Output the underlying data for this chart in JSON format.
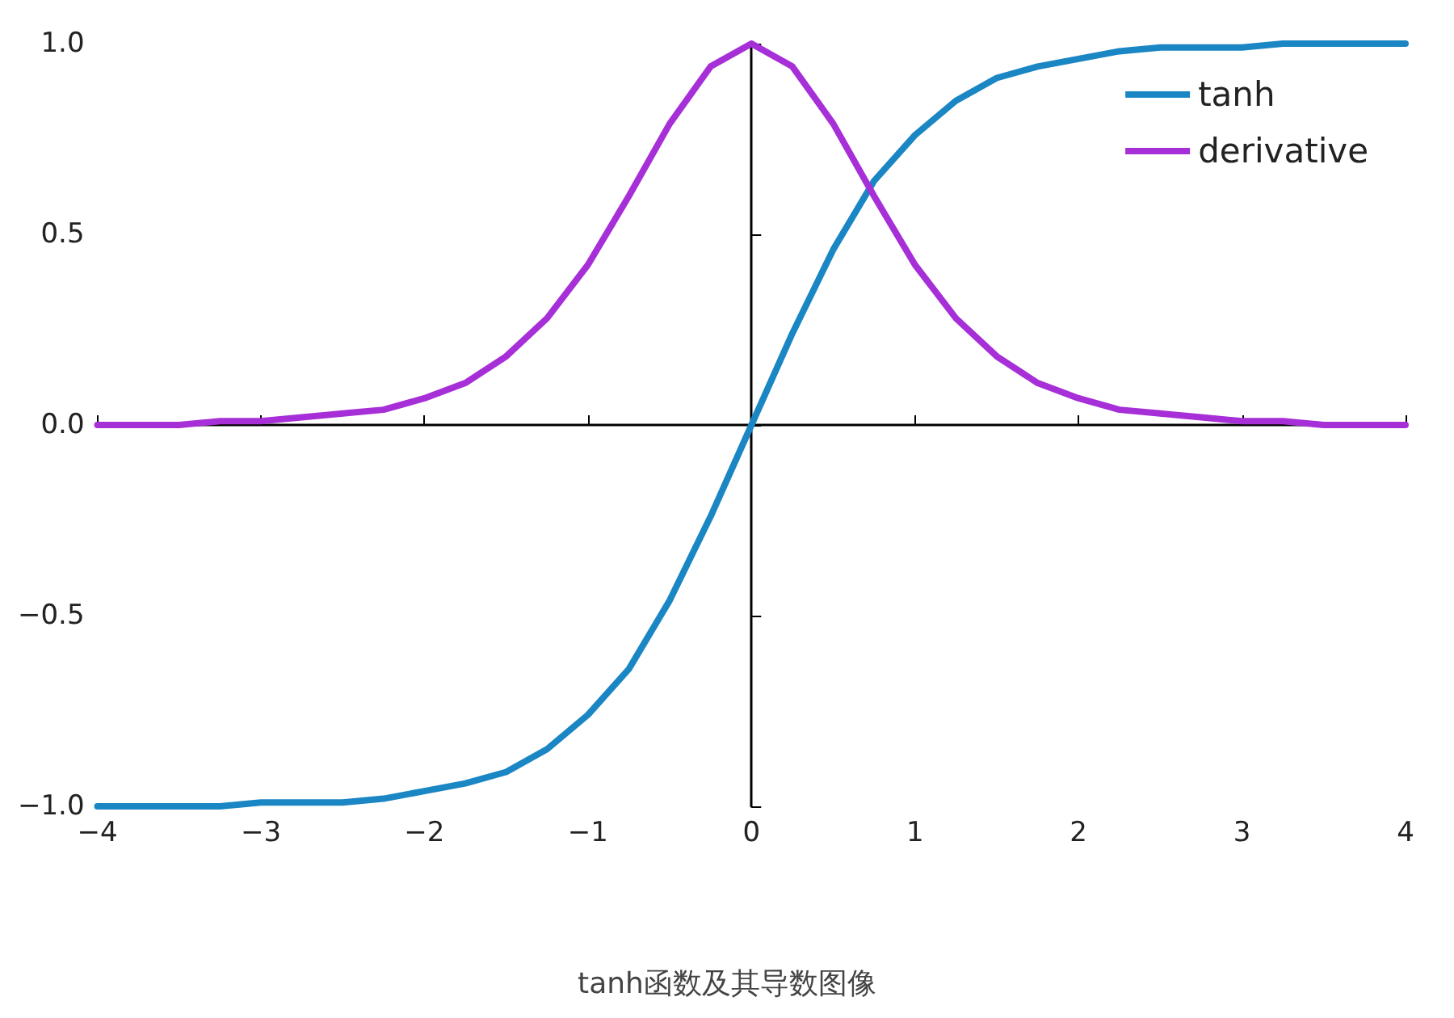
{
  "chart_data": {
    "type": "line",
    "x": [
      -4,
      -3.75,
      -3.5,
      -3.25,
      -3,
      -2.75,
      -2.5,
      -2.25,
      -2,
      -1.75,
      -1.5,
      -1.25,
      -1,
      -0.75,
      -0.5,
      -0.25,
      0,
      0.25,
      0.5,
      0.75,
      1,
      1.25,
      1.5,
      1.75,
      2,
      2.25,
      2.5,
      2.75,
      3,
      3.25,
      3.5,
      3.75,
      4
    ],
    "series": [
      {
        "name": "tanh",
        "color": "#1a86c4",
        "values": [
          -1,
          -1,
          -1,
          -1,
          -0.99,
          -0.99,
          -0.99,
          -0.98,
          -0.96,
          -0.94,
          -0.91,
          -0.85,
          -0.76,
          -0.64,
          -0.46,
          -0.24,
          0,
          0.24,
          0.46,
          0.64,
          0.76,
          0.85,
          0.91,
          0.94,
          0.96,
          0.98,
          0.99,
          0.99,
          0.99,
          1,
          1,
          1,
          1
        ]
      },
      {
        "name": "derivative",
        "color": "#a62fd8",
        "values": [
          0,
          0,
          0,
          0.01,
          0.01,
          0.02,
          0.03,
          0.04,
          0.07,
          0.11,
          0.18,
          0.28,
          0.42,
          0.6,
          0.79,
          0.94,
          1,
          0.94,
          0.79,
          0.6,
          0.42,
          0.28,
          0.18,
          0.11,
          0.07,
          0.04,
          0.03,
          0.02,
          0.01,
          0.01,
          0,
          0,
          0
        ]
      }
    ],
    "xlim": [
      -4,
      4
    ],
    "xticks": [
      {
        "value": -4,
        "label": "−4"
      },
      {
        "value": -3,
        "label": "−3"
      },
      {
        "value": -2,
        "label": "−2"
      },
      {
        "value": -1,
        "label": "−1"
      },
      0,
      1,
      2,
      3,
      4
    ],
    "ylim": [
      -1,
      1
    ],
    "yticks": [
      {
        "value": -1,
        "label": "−1.0"
      },
      {
        "value": -0.5,
        "label": "−0.5"
      },
      {
        "value": 0,
        "label": "0.0"
      },
      {
        "value": 0.5,
        "label": "0.5"
      },
      {
        "value": 1,
        "label": "1.0"
      }
    ],
    "legend": "top right",
    "marker": "none",
    "line_style": "solid",
    "annotations": [
      "tanh函数及其导数图像"
    ]
  }
}
